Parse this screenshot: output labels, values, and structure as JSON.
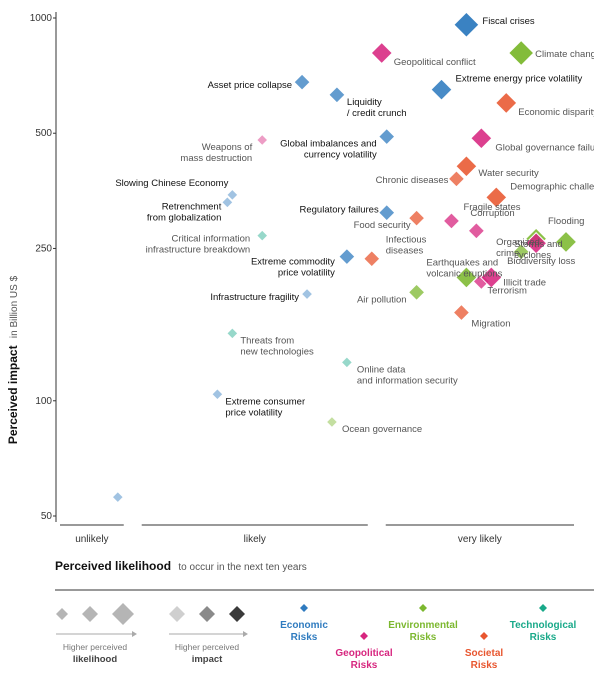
{
  "chart_data": {
    "type": "scatter",
    "y_axis": {
      "label": "Perceived impact",
      "sublabel": "in Billion US $",
      "scale": "log",
      "range": [
        50,
        1000
      ],
      "ticks": [
        {
          "value": 1000,
          "label": "1000"
        },
        {
          "value": 500,
          "label": "500"
        },
        {
          "value": 250,
          "label": "250"
        },
        {
          "value": 100,
          "label": "100"
        },
        {
          "value": 50,
          "label": "50"
        }
      ]
    },
    "x_axis": {
      "label": "Perceived likelihood",
      "sublabel": "to occur in the next ten years",
      "range": [
        0,
        1
      ],
      "categories": [
        {
          "label": "unlikely",
          "from": 0.0,
          "to": 0.12
        },
        {
          "label": "likely",
          "from": 0.14,
          "to": 0.61
        },
        {
          "label": "very likely",
          "from": 0.63,
          "to": 1.0
        }
      ]
    },
    "categories": {
      "economic": {
        "label": "Economic Risks",
        "color": "#2f7bbf"
      },
      "geopolitical": {
        "label": "Geopolitical Risks",
        "color": "#d7267f"
      },
      "environmental": {
        "label": "Environmental Risks",
        "color": "#7cb82f"
      },
      "societal": {
        "label": "Societal Risks",
        "color": "#e8562f"
      },
      "technological": {
        "label": "Technological Risks",
        "color": "#19a989"
      }
    },
    "points": [
      {
        "label": "Fiscal crises",
        "category": "economic",
        "x": 0.8,
        "y": 960,
        "impact": 4
      },
      {
        "label": "Climate change",
        "category": "environmental",
        "x": 0.91,
        "y": 810,
        "impact": 4
      },
      {
        "label": "Geopolitical conflict",
        "category": "geopolitical",
        "x": 0.63,
        "y": 810,
        "impact": 3
      },
      {
        "label": "Extreme energy price volatility",
        "category": "economic",
        "x": 0.75,
        "y": 650,
        "impact": 3
      },
      {
        "label": "Asset price collapse",
        "category": "economic",
        "x": 0.47,
        "y": 680,
        "impact": 2
      },
      {
        "label": "Liquidity / credit crunch",
        "category": "economic",
        "x": 0.54,
        "y": 630,
        "impact": 2
      },
      {
        "label": "Economic disparity",
        "category": "societal",
        "x": 0.88,
        "y": 600,
        "impact": 3
      },
      {
        "label": "Weapons of mass destruction",
        "category": "geopolitical",
        "x": 0.39,
        "y": 480,
        "impact": 1
      },
      {
        "label": "Global imbalances and currency volatility",
        "category": "economic",
        "x": 0.64,
        "y": 490,
        "impact": 2
      },
      {
        "label": "Global governance failure",
        "category": "geopolitical",
        "x": 0.83,
        "y": 485,
        "impact": 3
      },
      {
        "label": "Water security",
        "category": "societal",
        "x": 0.8,
        "y": 410,
        "impact": 3
      },
      {
        "label": "Chronic diseases",
        "category": "societal",
        "x": 0.78,
        "y": 380,
        "impact": 2
      },
      {
        "label": "Slowing Chinese Economy",
        "category": "economic",
        "x": 0.33,
        "y": 345,
        "impact": 1
      },
      {
        "label": "Retrenchment from globalization",
        "category": "economic",
        "x": 0.32,
        "y": 330,
        "impact": 1
      },
      {
        "label": "Demographic challenges",
        "category": "societal",
        "x": 0.86,
        "y": 340,
        "impact": 3
      },
      {
        "label": "Regulatory failures",
        "category": "economic",
        "x": 0.64,
        "y": 310,
        "impact": 2
      },
      {
        "label": "Food security",
        "category": "societal",
        "x": 0.7,
        "y": 300,
        "impact": 2
      },
      {
        "label": "Fragile states",
        "category": "geopolitical",
        "x": 0.77,
        "y": 295,
        "impact": 2
      },
      {
        "label": "Corruption",
        "category": "geopolitical",
        "x": 0.82,
        "y": 278,
        "impact": 2
      },
      {
        "label": "Critical information infrastructure breakdown",
        "category": "technological",
        "x": 0.39,
        "y": 270,
        "impact": 1
      },
      {
        "label": "Flooding",
        "category": "environmental",
        "x": 1.0,
        "y": 260,
        "impact": 3
      },
      {
        "label": "Storms and cyclones",
        "category": "environmental",
        "x": 0.94,
        "y": 265,
        "impact": 3
      },
      {
        "label": "Organized crime",
        "category": "geopolitical",
        "x": 0.94,
        "y": 258,
        "impact": 3
      },
      {
        "label": "Biodiversity loss",
        "category": "environmental",
        "x": 0.91,
        "y": 245,
        "impact": 2
      },
      {
        "label": "Extreme commodity price volatility",
        "category": "economic",
        "x": 0.56,
        "y": 238,
        "impact": 2
      },
      {
        "label": "Infectious diseases",
        "category": "societal",
        "x": 0.61,
        "y": 235,
        "impact": 2
      },
      {
        "label": "Earthquakes and volcanic eruptions",
        "category": "environmental",
        "x": 0.8,
        "y": 210,
        "impact": 3
      },
      {
        "label": "Illicit trade",
        "category": "geopolitical",
        "x": 0.85,
        "y": 210,
        "impact": 3
      },
      {
        "label": "Terrorism",
        "category": "geopolitical",
        "x": 0.83,
        "y": 205,
        "impact": 2
      },
      {
        "label": "Infrastructure fragility",
        "category": "economic",
        "x": 0.48,
        "y": 190,
        "impact": 1
      },
      {
        "label": "Air pollution",
        "category": "environmental",
        "x": 0.7,
        "y": 192,
        "impact": 2
      },
      {
        "label": "Migration",
        "category": "societal",
        "x": 0.79,
        "y": 170,
        "impact": 2
      },
      {
        "label": "Threats from new technologies",
        "category": "technological",
        "x": 0.33,
        "y": 150,
        "impact": 1
      },
      {
        "label": "Online data and information security",
        "category": "technological",
        "x": 0.56,
        "y": 126,
        "impact": 1
      },
      {
        "label": "Extreme consumer price volatility",
        "category": "economic",
        "x": 0.3,
        "y": 104,
        "impact": 1
      },
      {
        "label": "Ocean governance",
        "category": "environmental",
        "x": 0.53,
        "y": 88,
        "impact": 1
      },
      {
        "label": "",
        "category": "economic",
        "x": 0.1,
        "y": 56,
        "impact": 1
      }
    ]
  },
  "legend": {
    "likelihood_hint": {
      "line1": "Higher perceived",
      "line2": "likelihood"
    },
    "impact_hint": {
      "line1": "Higher perceived",
      "line2": "impact"
    },
    "categories": [
      {
        "line1": "Economic",
        "line2": "Risks",
        "color": "#2f7bbf"
      },
      {
        "line1": "Geopolitical",
        "line2": "Risks",
        "color": "#d7267f"
      },
      {
        "line1": "Environmental",
        "line2": "Risks",
        "color": "#7cb82f"
      },
      {
        "line1": "Societal",
        "line2": "Risks",
        "color": "#e8562f"
      },
      {
        "line1": "Technological",
        "line2": "Risks",
        "color": "#19a989"
      }
    ]
  }
}
